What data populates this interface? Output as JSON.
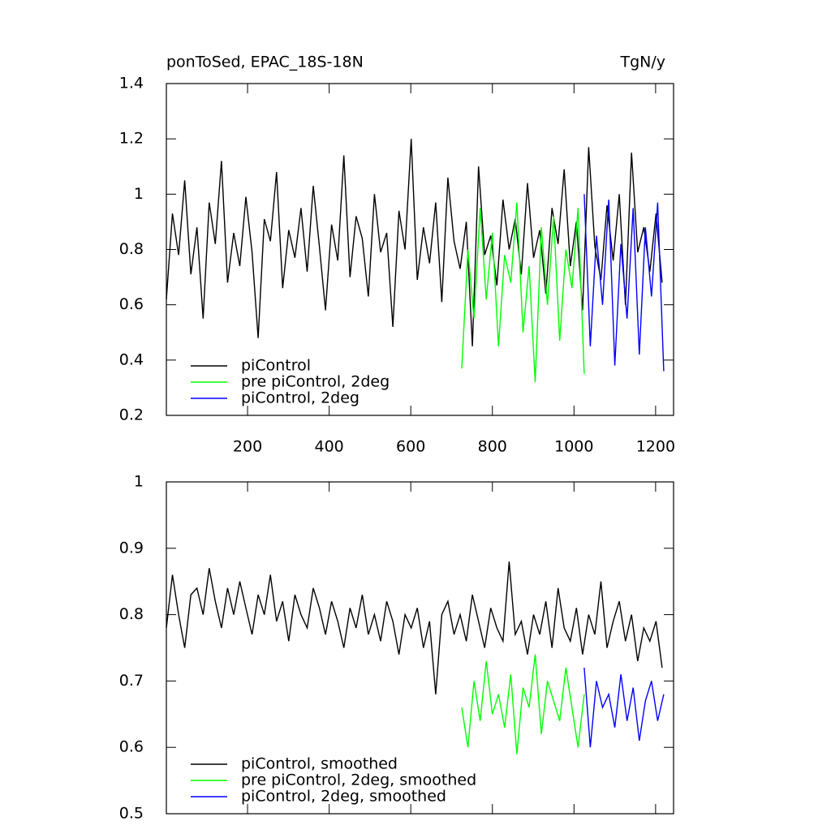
{
  "chart_data": [
    {
      "type": "line",
      "title": "ponToSed, EPAC_18S-18N",
      "units": "TgN/y",
      "xlim": [
        1,
        1244
      ],
      "xticks": [
        200,
        400,
        600,
        800,
        1000,
        1200
      ],
      "ylim": [
        0.2,
        1.4
      ],
      "yticks": [
        0.2,
        0.4,
        0.6,
        0.8,
        1.0,
        1.2,
        1.4
      ],
      "legend": "bottom-left",
      "series": [
        {
          "name": "piControl",
          "color": "#000000",
          "x": [
            1,
            16,
            31,
            46,
            61,
            76,
            91,
            106,
            121,
            136,
            151,
            166,
            181,
            196,
            211,
            226,
            241,
            256,
            271,
            286,
            301,
            316,
            331,
            346,
            361,
            376,
            391,
            406,
            421,
            436,
            451,
            466,
            481,
            496,
            511,
            526,
            541,
            556,
            571,
            586,
            601,
            616,
            631,
            646,
            661,
            676,
            691,
            706,
            721,
            736,
            751,
            766,
            781,
            796,
            811,
            826,
            841,
            856,
            871,
            886,
            901,
            916,
            931,
            946,
            961,
            976,
            991,
            1006,
            1021,
            1036,
            1051,
            1066,
            1081,
            1096,
            1111,
            1126,
            1141,
            1156,
            1171,
            1186,
            1201,
            1216
          ],
          "values": [
            0.62,
            0.93,
            0.78,
            1.05,
            0.71,
            0.88,
            0.55,
            0.97,
            0.82,
            1.12,
            0.68,
            0.86,
            0.74,
            0.99,
            0.79,
            0.48,
            0.91,
            0.83,
            1.08,
            0.66,
            0.87,
            0.77,
            0.95,
            0.72,
            1.03,
            0.81,
            0.58,
            0.89,
            0.76,
            1.14,
            0.7,
            0.92,
            0.84,
            0.63,
            1.0,
            0.79,
            0.86,
            0.52,
            0.94,
            0.8,
            1.2,
            0.69,
            0.88,
            0.75,
            0.97,
            0.61,
            1.06,
            0.83,
            0.73,
            0.9,
            0.45,
            1.1,
            0.78,
            0.85,
            0.67,
            0.98,
            0.8,
            0.91,
            0.71,
            1.04,
            0.77,
            0.87,
            0.64,
            0.95,
            0.82,
            1.09,
            0.74,
            0.9,
            0.58,
            1.17,
            0.81,
            0.69,
            0.96,
            0.76,
            1.0,
            0.6,
            1.15,
            0.79,
            0.88,
            0.72,
            0.93,
            0.68
          ]
        },
        {
          "name": "pre piControl, 2deg",
          "color": "#00ff00",
          "x": [
            725,
            740,
            755,
            770,
            785,
            800,
            815,
            830,
            845,
            860,
            875,
            890,
            905,
            920,
            935,
            950,
            965,
            980,
            995,
            1010,
            1025
          ],
          "values": [
            0.37,
            0.8,
            0.55,
            0.95,
            0.62,
            0.86,
            0.45,
            0.78,
            0.68,
            0.97,
            0.5,
            0.74,
            0.32,
            0.88,
            0.6,
            0.92,
            0.47,
            0.8,
            0.66,
            0.95,
            0.35
          ]
        },
        {
          "name": "piControl, 2deg",
          "color": "#0000ff",
          "x": [
            1025,
            1040,
            1055,
            1070,
            1085,
            1100,
            1115,
            1130,
            1145,
            1160,
            1175,
            1190,
            1205,
            1220
          ],
          "values": [
            1.0,
            0.45,
            0.85,
            0.6,
            0.98,
            0.38,
            0.82,
            0.55,
            0.95,
            0.42,
            0.88,
            0.63,
            0.97,
            0.36
          ]
        }
      ]
    },
    {
      "type": "line",
      "xlim": [
        1,
        1244
      ],
      "xticks": [
        200,
        400,
        600,
        800,
        1000,
        1200
      ],
      "ylim": [
        0.5,
        1.0
      ],
      "yticks": [
        0.5,
        0.6,
        0.7,
        0.8,
        0.9,
        1.0
      ],
      "legend": "bottom-left",
      "series": [
        {
          "name": "piControl, smoothed",
          "color": "#000000",
          "x": [
            1,
            16,
            31,
            46,
            61,
            76,
            91,
            106,
            121,
            136,
            151,
            166,
            181,
            196,
            211,
            226,
            241,
            256,
            271,
            286,
            301,
            316,
            331,
            346,
            361,
            376,
            391,
            406,
            421,
            436,
            451,
            466,
            481,
            496,
            511,
            526,
            541,
            556,
            571,
            586,
            601,
            616,
            631,
            646,
            661,
            676,
            691,
            706,
            721,
            736,
            751,
            766,
            781,
            796,
            811,
            826,
            841,
            856,
            871,
            886,
            901,
            916,
            931,
            946,
            961,
            976,
            991,
            1006,
            1021,
            1036,
            1051,
            1066,
            1081,
            1096,
            1111,
            1126,
            1141,
            1156,
            1171,
            1186,
            1201,
            1216
          ],
          "values": [
            0.78,
            0.86,
            0.8,
            0.75,
            0.83,
            0.84,
            0.8,
            0.87,
            0.82,
            0.78,
            0.84,
            0.8,
            0.85,
            0.81,
            0.77,
            0.83,
            0.8,
            0.86,
            0.79,
            0.82,
            0.76,
            0.83,
            0.8,
            0.78,
            0.84,
            0.81,
            0.77,
            0.82,
            0.79,
            0.75,
            0.81,
            0.78,
            0.83,
            0.77,
            0.8,
            0.76,
            0.82,
            0.79,
            0.74,
            0.8,
            0.78,
            0.81,
            0.75,
            0.79,
            0.68,
            0.8,
            0.82,
            0.77,
            0.8,
            0.76,
            0.83,
            0.79,
            0.75,
            0.81,
            0.78,
            0.76,
            0.88,
            0.77,
            0.79,
            0.74,
            0.8,
            0.77,
            0.82,
            0.75,
            0.84,
            0.78,
            0.76,
            0.81,
            0.74,
            0.8,
            0.77,
            0.85,
            0.75,
            0.79,
            0.82,
            0.76,
            0.8,
            0.73,
            0.78,
            0.76,
            0.79,
            0.72
          ]
        },
        {
          "name": "pre piControl, 2deg, smoothed",
          "color": "#00ff00",
          "x": [
            725,
            740,
            755,
            770,
            785,
            800,
            815,
            830,
            845,
            860,
            875,
            890,
            905,
            920,
            935,
            950,
            965,
            980,
            995,
            1010,
            1025
          ],
          "values": [
            0.66,
            0.6,
            0.7,
            0.64,
            0.73,
            0.65,
            0.68,
            0.63,
            0.71,
            0.59,
            0.69,
            0.66,
            0.74,
            0.62,
            0.7,
            0.67,
            0.64,
            0.72,
            0.66,
            0.6,
            0.68
          ]
        },
        {
          "name": "piControl, 2deg, smoothed",
          "color": "#0000ff",
          "x": [
            1025,
            1040,
            1055,
            1070,
            1085,
            1100,
            1115,
            1130,
            1145,
            1160,
            1175,
            1190,
            1205,
            1220
          ],
          "values": [
            0.72,
            0.6,
            0.7,
            0.66,
            0.68,
            0.63,
            0.71,
            0.64,
            0.69,
            0.61,
            0.67,
            0.7,
            0.64,
            0.68
          ]
        }
      ]
    }
  ]
}
